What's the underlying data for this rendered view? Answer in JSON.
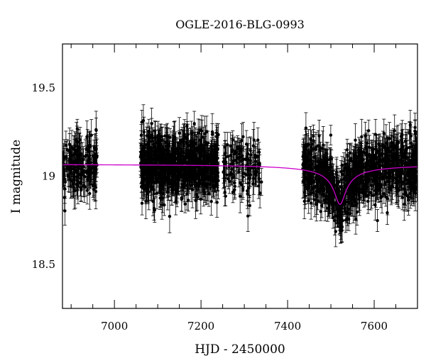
{
  "chart_data": {
    "type": "scatter",
    "title": "OGLE-2016-BLG-0993",
    "xlabel": "HJD - 2450000",
    "ylabel": "I magnitude",
    "xlim": [
      6880,
      7700
    ],
    "ylim": [
      19.75,
      18.25
    ],
    "y_inverted": true,
    "xticks": [
      7000,
      7200,
      7400,
      7600
    ],
    "yticks": [
      18.5,
      19,
      19.5
    ],
    "ytick_labels": [
      "18.5",
      "19",
      "19.5"
    ],
    "grid": false,
    "legend": "none",
    "colors": {
      "points": "#000000",
      "model": "#cc00cc"
    },
    "season_ranges": [
      [
        6880,
        6960
      ],
      [
        7060,
        7240
      ],
      [
        7250,
        7340
      ],
      [
        7435,
        7700
      ]
    ],
    "approx_points_per_season": [
      180,
      780,
      120,
      900
    ],
    "typical_error_bar_mag": 0.07,
    "model": {
      "description": "microlensing model fit",
      "baseline_mag": 19.07,
      "peak_time": 7521,
      "peak_mag": 18.84,
      "einstein_time_days": 70,
      "points": [
        {
          "x": 6880,
          "y": 19.07
        },
        {
          "x": 7000,
          "y": 19.07
        },
        {
          "x": 7200,
          "y": 19.065
        },
        {
          "x": 7300,
          "y": 19.06
        },
        {
          "x": 7400,
          "y": 19.03
        },
        {
          "x": 7450,
          "y": 18.99
        },
        {
          "x": 7490,
          "y": 18.93
        },
        {
          "x": 7510,
          "y": 18.88
        },
        {
          "x": 7521,
          "y": 18.84
        },
        {
          "x": 7532,
          "y": 18.88
        },
        {
          "x": 7555,
          "y": 18.95
        },
        {
          "x": 7600,
          "y": 19.02
        },
        {
          "x": 7650,
          "y": 19.05
        },
        {
          "x": 7700,
          "y": 19.06
        }
      ]
    }
  }
}
